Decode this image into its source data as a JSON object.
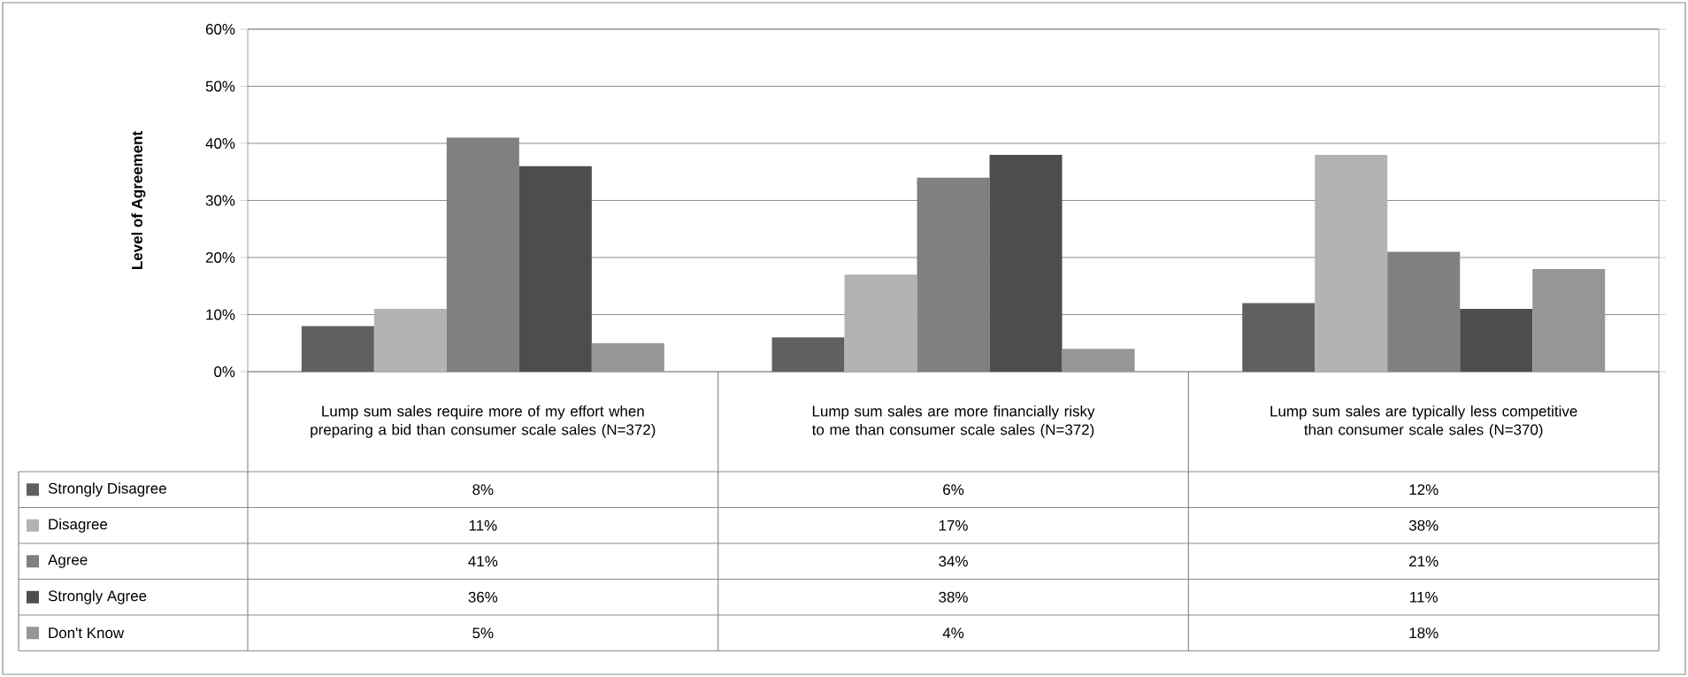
{
  "chart_data": {
    "type": "bar",
    "ylabel": "Level of Agreement",
    "categories": [
      "Lump sum sales require more of my effort when preparing a bid than consumer scale sales (N=372)",
      "Lump sum sales are more financially risky to me than consumer scale sales (N=372)",
      "Lump sum sales are typically less competitive than consumer scale sales (N=370)"
    ],
    "series": [
      {
        "name": "Strongly Disagree",
        "color": "#606060",
        "values": [
          8,
          6,
          12
        ],
        "value_labels": [
          "8%",
          "6%",
          "12%"
        ]
      },
      {
        "name": "Disagree",
        "color": "#b3b3b3",
        "values": [
          11,
          17,
          38
        ],
        "value_labels": [
          "11%",
          "17%",
          "38%"
        ]
      },
      {
        "name": "Agree",
        "color": "#808080",
        "values": [
          41,
          34,
          21
        ],
        "value_labels": [
          "41%",
          "34%",
          "21%"
        ]
      },
      {
        "name": "Strongly Agree",
        "color": "#4d4d4d",
        "values": [
          36,
          38,
          11
        ],
        "value_labels": [
          "36%",
          "38%",
          "11%"
        ]
      },
      {
        "name": "Don't Know",
        "color": "#969696",
        "values": [
          5,
          4,
          18
        ],
        "value_labels": [
          "5%",
          "4%",
          "18%"
        ]
      }
    ],
    "ylim": [
      0,
      60
    ],
    "yticks": [
      {
        "value": 0,
        "label": "0%"
      },
      {
        "value": 10,
        "label": "10%"
      },
      {
        "value": 20,
        "label": "20%"
      },
      {
        "value": 30,
        "label": "30%"
      },
      {
        "value": 40,
        "label": "40%"
      },
      {
        "value": 50,
        "label": "50%"
      },
      {
        "value": 60,
        "label": "60%"
      }
    ],
    "grid": "y",
    "legend": "bottom",
    "data_labels": true
  }
}
